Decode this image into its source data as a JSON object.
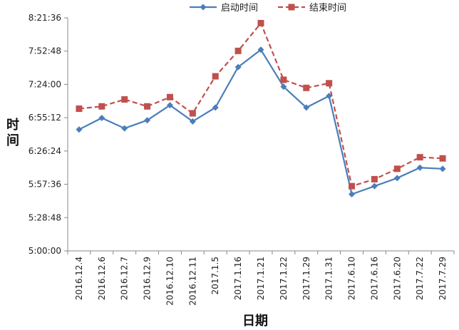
{
  "chart_data": {
    "type": "line",
    "xlabel": "日期",
    "ylabel": "时间",
    "categories": [
      "2016.12.4",
      "2016.12.6",
      "2016.12.7",
      "2016.12.9",
      "2016.12.10",
      "2016.12.11",
      "2017.1.5",
      "2017.1.16",
      "2017.1.21",
      "2017.1.22",
      "2017.1.29",
      "2017.1.31",
      "2017.6.10",
      "2017.6.16",
      "2017.6.20",
      "2017.7.22",
      "2017.7.29"
    ],
    "y_ticks": [
      "5:00:00",
      "5:28:48",
      "5:57:36",
      "6:26:24",
      "6:55:12",
      "7:24:00",
      "7:52:48",
      "8:21:36"
    ],
    "ylim": [
      "5:00:00",
      "8:21:36"
    ],
    "grid": false,
    "legend_position": "top",
    "series": [
      {
        "name": "启动时间",
        "color": "#4a7ebb",
        "marker": "diamond",
        "line_style": "solid",
        "values": [
          "6:45:00",
          "6:55:00",
          "6:46:00",
          "6:53:00",
          "7:06:00",
          "6:52:00",
          "7:04:00",
          "7:39:00",
          "7:54:00",
          "7:22:00",
          "7:04:00",
          "7:14:00",
          "5:49:00",
          "5:56:00",
          "6:03:00",
          "6:12:00",
          "6:11:00"
        ]
      },
      {
        "name": "结束时间",
        "color": "#c0504d",
        "marker": "square",
        "line_style": "dashed",
        "values": [
          "7:03:00",
          "7:05:00",
          "7:11:00",
          "7:05:00",
          "7:13:00",
          "6:59:00",
          "7:31:00",
          "7:53:00",
          "8:17:00",
          "7:28:00",
          "7:21:00",
          "7:25:00",
          "5:56:00",
          "6:02:00",
          "6:11:00",
          "6:21:00",
          "6:20:00"
        ]
      }
    ]
  }
}
